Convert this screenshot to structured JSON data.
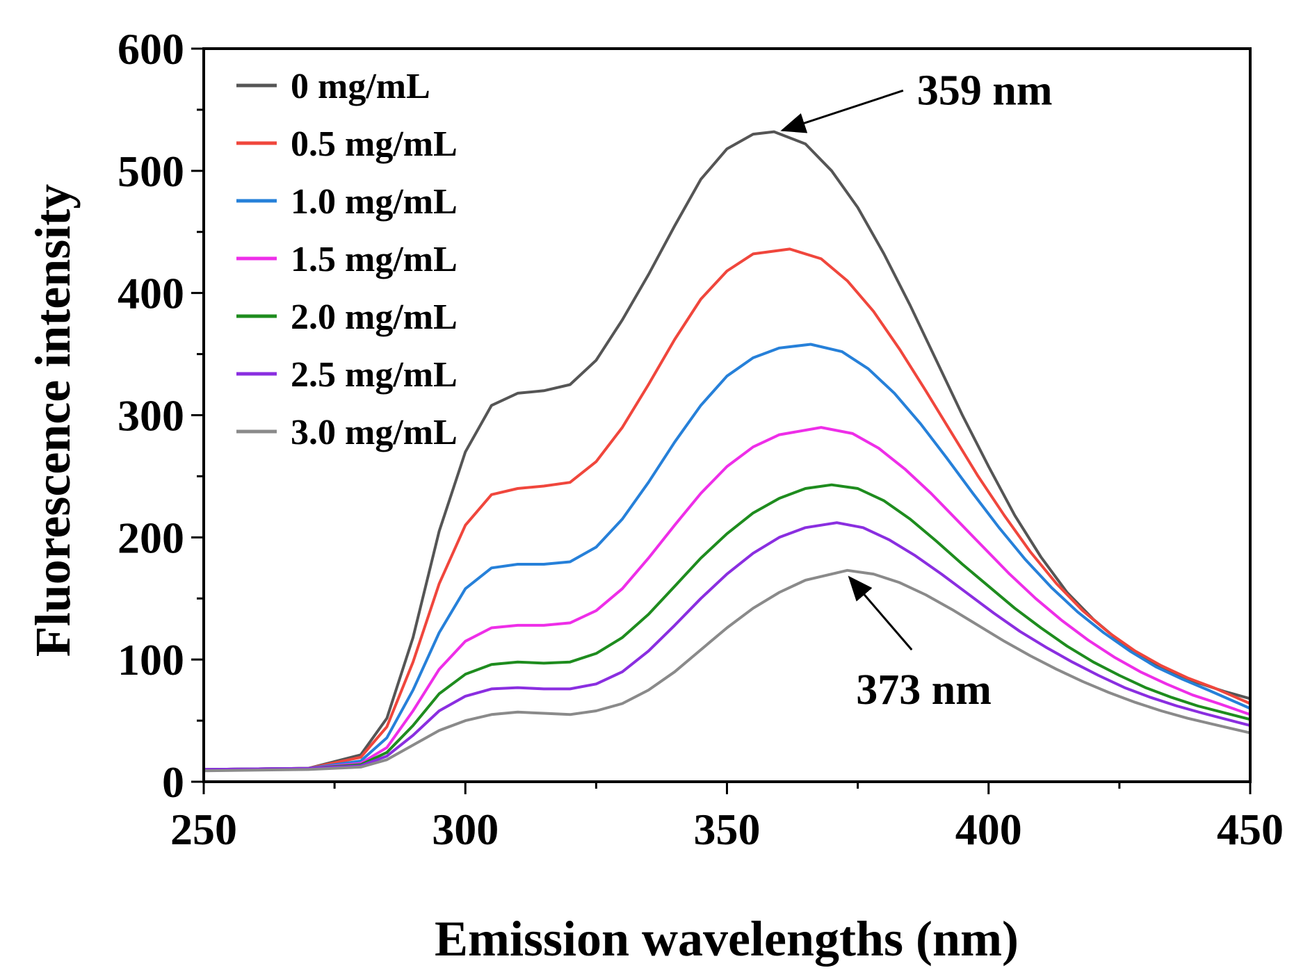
{
  "chart_data": {
    "type": "line",
    "title": "",
    "xlabel": "Emission wavelengths (nm)",
    "ylabel": "Fluorescence intensity",
    "xlim": [
      250,
      450
    ],
    "ylim": [
      0,
      600
    ],
    "x_ticks": [
      250,
      300,
      350,
      400,
      450
    ],
    "y_ticks": [
      0,
      100,
      200,
      300,
      400,
      500,
      600
    ],
    "grid": false,
    "legend_position": "top-left",
    "series": [
      {
        "name": "0 mg/mL",
        "color": "#555555",
        "points": [
          [
            250,
            10
          ],
          [
            270,
            11
          ],
          [
            280,
            22
          ],
          [
            285,
            52
          ],
          [
            290,
            118
          ],
          [
            295,
            205
          ],
          [
            300,
            270
          ],
          [
            305,
            308
          ],
          [
            310,
            318
          ],
          [
            315,
            320
          ],
          [
            320,
            325
          ],
          [
            325,
            345
          ],
          [
            330,
            378
          ],
          [
            335,
            415
          ],
          [
            340,
            455
          ],
          [
            345,
            493
          ],
          [
            350,
            518
          ],
          [
            355,
            530
          ],
          [
            359,
            532
          ],
          [
            365,
            522
          ],
          [
            370,
            500
          ],
          [
            375,
            470
          ],
          [
            380,
            432
          ],
          [
            385,
            390
          ],
          [
            390,
            345
          ],
          [
            395,
            300
          ],
          [
            400,
            258
          ],
          [
            405,
            218
          ],
          [
            410,
            184
          ],
          [
            415,
            155
          ],
          [
            420,
            133
          ],
          [
            425,
            115
          ],
          [
            430,
            100
          ],
          [
            435,
            90
          ],
          [
            440,
            81
          ],
          [
            445,
            74
          ],
          [
            450,
            68
          ]
        ]
      },
      {
        "name": "0.5 mg/mL",
        "color": "#f0463c",
        "points": [
          [
            250,
            10
          ],
          [
            270,
            11
          ],
          [
            280,
            20
          ],
          [
            285,
            45
          ],
          [
            290,
            98
          ],
          [
            295,
            162
          ],
          [
            300,
            210
          ],
          [
            305,
            235
          ],
          [
            310,
            240
          ],
          [
            315,
            242
          ],
          [
            320,
            245
          ],
          [
            325,
            262
          ],
          [
            330,
            290
          ],
          [
            335,
            325
          ],
          [
            340,
            362
          ],
          [
            345,
            395
          ],
          [
            350,
            418
          ],
          [
            355,
            432
          ],
          [
            362,
            436
          ],
          [
            368,
            428
          ],
          [
            373,
            410
          ],
          [
            378,
            385
          ],
          [
            383,
            354
          ],
          [
            388,
            320
          ],
          [
            393,
            285
          ],
          [
            398,
            250
          ],
          [
            403,
            218
          ],
          [
            408,
            188
          ],
          [
            413,
            162
          ],
          [
            418,
            140
          ],
          [
            423,
            122
          ],
          [
            428,
            107
          ],
          [
            433,
            95
          ],
          [
            438,
            85
          ],
          [
            443,
            77
          ],
          [
            450,
            64
          ]
        ]
      },
      {
        "name": "1.0 mg/mL",
        "color": "#2680d9",
        "points": [
          [
            250,
            10
          ],
          [
            270,
            11
          ],
          [
            280,
            17
          ],
          [
            285,
            36
          ],
          [
            290,
            75
          ],
          [
            295,
            122
          ],
          [
            300,
            158
          ],
          [
            305,
            175
          ],
          [
            310,
            178
          ],
          [
            315,
            178
          ],
          [
            320,
            180
          ],
          [
            325,
            192
          ],
          [
            330,
            215
          ],
          [
            335,
            245
          ],
          [
            340,
            278
          ],
          [
            345,
            308
          ],
          [
            350,
            332
          ],
          [
            355,
            347
          ],
          [
            360,
            355
          ],
          [
            366,
            358
          ],
          [
            372,
            352
          ],
          [
            377,
            338
          ],
          [
            382,
            318
          ],
          [
            387,
            293
          ],
          [
            392,
            265
          ],
          [
            397,
            236
          ],
          [
            402,
            208
          ],
          [
            407,
            182
          ],
          [
            412,
            159
          ],
          [
            417,
            139
          ],
          [
            422,
            122
          ],
          [
            427,
            107
          ],
          [
            432,
            94
          ],
          [
            437,
            84
          ],
          [
            442,
            75
          ],
          [
            450,
            60
          ]
        ]
      },
      {
        "name": "1.5 mg/mL",
        "color": "#ee2ee8",
        "points": [
          [
            250,
            10
          ],
          [
            270,
            11
          ],
          [
            280,
            15
          ],
          [
            285,
            28
          ],
          [
            290,
            58
          ],
          [
            295,
            92
          ],
          [
            300,
            115
          ],
          [
            305,
            126
          ],
          [
            310,
            128
          ],
          [
            315,
            128
          ],
          [
            320,
            130
          ],
          [
            325,
            140
          ],
          [
            330,
            158
          ],
          [
            335,
            183
          ],
          [
            340,
            210
          ],
          [
            345,
            236
          ],
          [
            350,
            258
          ],
          [
            355,
            274
          ],
          [
            360,
            284
          ],
          [
            368,
            290
          ],
          [
            374,
            285
          ],
          [
            379,
            273
          ],
          [
            384,
            256
          ],
          [
            389,
            236
          ],
          [
            394,
            214
          ],
          [
            399,
            192
          ],
          [
            404,
            170
          ],
          [
            409,
            150
          ],
          [
            414,
            132
          ],
          [
            419,
            116
          ],
          [
            424,
            102
          ],
          [
            429,
            90
          ],
          [
            434,
            80
          ],
          [
            439,
            71
          ],
          [
            444,
            64
          ],
          [
            450,
            55
          ]
        ]
      },
      {
        "name": "2.0 mg/mL",
        "color": "#1e8c1e",
        "points": [
          [
            250,
            10
          ],
          [
            270,
            11
          ],
          [
            280,
            14
          ],
          [
            285,
            24
          ],
          [
            290,
            46
          ],
          [
            295,
            72
          ],
          [
            300,
            88
          ],
          [
            305,
            96
          ],
          [
            310,
            98
          ],
          [
            315,
            97
          ],
          [
            320,
            98
          ],
          [
            325,
            105
          ],
          [
            330,
            118
          ],
          [
            335,
            137
          ],
          [
            340,
            160
          ],
          [
            345,
            183
          ],
          [
            350,
            203
          ],
          [
            355,
            220
          ],
          [
            360,
            232
          ],
          [
            365,
            240
          ],
          [
            370,
            243
          ],
          [
            375,
            240
          ],
          [
            380,
            230
          ],
          [
            385,
            215
          ],
          [
            390,
            197
          ],
          [
            395,
            178
          ],
          [
            400,
            160
          ],
          [
            405,
            142
          ],
          [
            410,
            126
          ],
          [
            415,
            111
          ],
          [
            420,
            98
          ],
          [
            425,
            87
          ],
          [
            430,
            77
          ],
          [
            435,
            69
          ],
          [
            440,
            62
          ],
          [
            450,
            51
          ]
        ]
      },
      {
        "name": "2.5 mg/mL",
        "color": "#8a2ee0",
        "points": [
          [
            250,
            10
          ],
          [
            270,
            11
          ],
          [
            280,
            13
          ],
          [
            285,
            21
          ],
          [
            290,
            38
          ],
          [
            295,
            58
          ],
          [
            300,
            70
          ],
          [
            305,
            76
          ],
          [
            310,
            77
          ],
          [
            315,
            76
          ],
          [
            320,
            76
          ],
          [
            325,
            80
          ],
          [
            330,
            90
          ],
          [
            335,
            107
          ],
          [
            340,
            128
          ],
          [
            345,
            150
          ],
          [
            350,
            170
          ],
          [
            355,
            187
          ],
          [
            360,
            200
          ],
          [
            365,
            208
          ],
          [
            371,
            212
          ],
          [
            376,
            208
          ],
          [
            381,
            198
          ],
          [
            386,
            185
          ],
          [
            391,
            170
          ],
          [
            396,
            154
          ],
          [
            401,
            138
          ],
          [
            406,
            123
          ],
          [
            411,
            110
          ],
          [
            416,
            98
          ],
          [
            421,
            87
          ],
          [
            426,
            77
          ],
          [
            431,
            69
          ],
          [
            436,
            62
          ],
          [
            441,
            56
          ],
          [
            450,
            46
          ]
        ]
      },
      {
        "name": "3.0 mg/mL",
        "color": "#8a8a8a",
        "points": [
          [
            250,
            9
          ],
          [
            270,
            10
          ],
          [
            280,
            12
          ],
          [
            285,
            18
          ],
          [
            290,
            30
          ],
          [
            295,
            42
          ],
          [
            300,
            50
          ],
          [
            305,
            55
          ],
          [
            310,
            57
          ],
          [
            315,
            56
          ],
          [
            320,
            55
          ],
          [
            325,
            58
          ],
          [
            330,
            64
          ],
          [
            335,
            75
          ],
          [
            340,
            90
          ],
          [
            345,
            108
          ],
          [
            350,
            126
          ],
          [
            355,
            142
          ],
          [
            360,
            155
          ],
          [
            365,
            165
          ],
          [
            373,
            173
          ],
          [
            378,
            170
          ],
          [
            383,
            163
          ],
          [
            388,
            153
          ],
          [
            393,
            141
          ],
          [
            398,
            128
          ],
          [
            403,
            115
          ],
          [
            408,
            103
          ],
          [
            413,
            92
          ],
          [
            418,
            82
          ],
          [
            423,
            73
          ],
          [
            428,
            65
          ],
          [
            433,
            58
          ],
          [
            438,
            52
          ],
          [
            443,
            47
          ],
          [
            450,
            40
          ]
        ]
      }
    ],
    "annotations": [
      {
        "text": "359 nm",
        "target": [
          359,
          532
        ],
        "label_at": [
          385,
          560
        ]
      },
      {
        "text": "373 nm",
        "target": [
          373,
          173
        ],
        "label_at": [
          380,
          75
        ]
      }
    ]
  }
}
